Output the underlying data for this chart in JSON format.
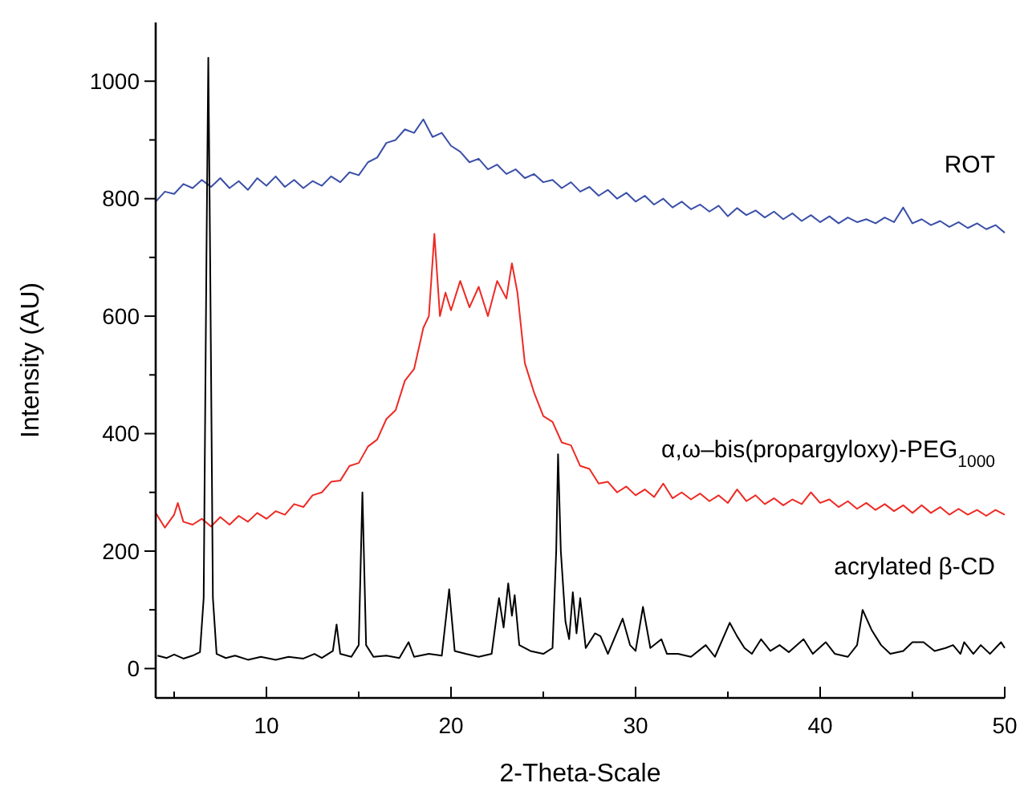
{
  "chart_data": {
    "type": "line",
    "xlabel": "2-Theta-Scale",
    "ylabel": "Intensity (AU)",
    "xlim": [
      4,
      50
    ],
    "ylim": [
      -50,
      1100
    ],
    "xticks": [
      {
        "value": 5,
        "label": null
      },
      10,
      {
        "value": 15,
        "label": null
      },
      20,
      {
        "value": 25,
        "label": null
      },
      30,
      {
        "value": 35,
        "label": null
      },
      40,
      {
        "value": 45,
        "label": null
      },
      50
    ],
    "yticks": [
      0,
      {
        "value": 100,
        "label": null
      },
      200,
      {
        "value": 300,
        "label": null
      },
      400,
      {
        "value": 500,
        "label": null
      },
      600,
      {
        "value": 700,
        "label": null
      },
      800,
      {
        "value": 900,
        "label": null
      },
      1000
    ],
    "series": [
      {
        "name": "ROT",
        "color": "#3a4fa8",
        "x": [
          4,
          4.5,
          5,
          5.5,
          6,
          6.5,
          7,
          7.5,
          8,
          8.5,
          9,
          9.5,
          10,
          10.5,
          11,
          11.5,
          12,
          12.5,
          13,
          13.5,
          14,
          14.5,
          15,
          15.5,
          16,
          16.5,
          17,
          17.5,
          18,
          18.5,
          19,
          19.5,
          20,
          20.5,
          21,
          21.5,
          22,
          22.5,
          23,
          23.5,
          24,
          24.5,
          25,
          25.5,
          26,
          26.5,
          27,
          27.5,
          28,
          28.5,
          29,
          29.5,
          30,
          30.5,
          31,
          31.5,
          32,
          32.5,
          33,
          33.5,
          34,
          34.5,
          35,
          35.5,
          36,
          36.5,
          37,
          37.5,
          38,
          38.5,
          39,
          39.5,
          40,
          40.5,
          41,
          41.5,
          42,
          42.5,
          43,
          43.5,
          44,
          44.5,
          45,
          45.5,
          46,
          46.5,
          47,
          47.5,
          48,
          48.5,
          49,
          49.5,
          50
        ],
        "values": [
          795,
          812,
          808,
          825,
          818,
          832,
          820,
          835,
          818,
          830,
          815,
          835,
          822,
          838,
          820,
          832,
          818,
          830,
          822,
          838,
          828,
          845,
          840,
          862,
          870,
          895,
          900,
          918,
          912,
          935,
          905,
          912,
          890,
          880,
          862,
          868,
          850,
          858,
          842,
          850,
          835,
          842,
          828,
          832,
          818,
          828,
          812,
          820,
          805,
          815,
          800,
          810,
          795,
          805,
          790,
          800,
          785,
          795,
          782,
          790,
          778,
          788,
          770,
          784,
          772,
          780,
          768,
          778,
          765,
          775,
          762,
          772,
          760,
          770,
          758,
          768,
          760,
          765,
          758,
          768,
          760,
          785,
          758,
          765,
          755,
          762,
          752,
          760,
          750,
          758,
          748,
          755,
          742
        ]
      },
      {
        "name": "α,ω–bis(propargyloxy)-PEG$_{1000}$",
        "color": "#ee2a24",
        "x": [
          4,
          4.5,
          5,
          5.2,
          5.5,
          6,
          6.5,
          7,
          7.5,
          8,
          8.5,
          9,
          9.5,
          10,
          10.5,
          11,
          11.5,
          12,
          12.5,
          13,
          13.5,
          14,
          14.5,
          15,
          15.5,
          16,
          16.5,
          17,
          17.5,
          18,
          18.5,
          18.8,
          19.1,
          19.4,
          19.7,
          20,
          20.5,
          21,
          21.5,
          22,
          22.5,
          23,
          23.3,
          23.6,
          24,
          24.5,
          25,
          25.5,
          26,
          26.5,
          27,
          27.5,
          28,
          28.5,
          29,
          29.5,
          30,
          30.5,
          31,
          31.5,
          32,
          32.5,
          33,
          33.5,
          34,
          34.5,
          35,
          35.5,
          36,
          36.5,
          37,
          37.5,
          38,
          38.5,
          39,
          39.5,
          40,
          40.5,
          41,
          41.5,
          42,
          42.5,
          43,
          43.5,
          44,
          44.5,
          45,
          45.5,
          46,
          46.5,
          47,
          47.5,
          48,
          48.5,
          49,
          49.5,
          50
        ],
        "values": [
          265,
          240,
          262,
          282,
          250,
          245,
          255,
          242,
          258,
          245,
          260,
          250,
          265,
          255,
          268,
          262,
          280,
          275,
          295,
          300,
          318,
          320,
          345,
          350,
          378,
          390,
          425,
          440,
          490,
          510,
          580,
          600,
          740,
          600,
          640,
          610,
          660,
          615,
          650,
          600,
          660,
          630,
          690,
          640,
          520,
          470,
          430,
          420,
          385,
          380,
          345,
          340,
          315,
          318,
          300,
          310,
          295,
          305,
          292,
          315,
          290,
          300,
          288,
          298,
          285,
          295,
          282,
          305,
          285,
          295,
          280,
          290,
          278,
          288,
          280,
          300,
          282,
          288,
          275,
          285,
          272,
          282,
          270,
          280,
          268,
          278,
          265,
          278,
          265,
          275,
          262,
          272,
          262,
          270,
          260,
          270,
          262
        ]
      },
      {
        "name": "acrylated β-CD",
        "color": "#000000",
        "x": [
          4.1,
          4.6,
          5,
          5.5,
          6,
          6.4,
          6.6,
          6.75,
          6.85,
          6.95,
          7.1,
          7.3,
          7.8,
          8.3,
          9,
          9.7,
          10.5,
          11.2,
          12,
          12.6,
          13,
          13.6,
          13.8,
          14,
          14.6,
          15,
          15.2,
          15.4,
          15.8,
          16.5,
          17.2,
          17.7,
          18,
          18.8,
          19.5,
          19.9,
          20.2,
          20.8,
          21.5,
          22.2,
          22.6,
          22.85,
          23.1,
          23.3,
          23.45,
          23.7,
          24.3,
          25,
          25.5,
          25.7,
          25.8,
          25.95,
          26.2,
          26.4,
          26.6,
          26.8,
          27,
          27.3,
          27.8,
          28.1,
          28.5,
          29.3,
          29.7,
          30,
          30.4,
          30.8,
          31.4,
          31.7,
          32.3,
          33,
          33.8,
          34.3,
          35.1,
          35.5,
          35.9,
          36.3,
          36.8,
          37.3,
          37.8,
          38.3,
          39.1,
          39.6,
          40.3,
          40.8,
          41.5,
          42,
          42.3,
          42.8,
          43.3,
          43.8,
          44.5,
          45,
          45.6,
          46.2,
          46.8,
          47.2,
          47.6,
          47.8,
          48.3,
          48.7,
          49.2,
          49.8,
          50
        ],
        "values": [
          22,
          18,
          24,
          17,
          22,
          28,
          120,
          700,
          1040,
          700,
          120,
          25,
          18,
          22,
          15,
          20,
          15,
          20,
          17,
          25,
          18,
          30,
          75,
          25,
          20,
          40,
          300,
          40,
          20,
          22,
          18,
          45,
          20,
          25,
          22,
          135,
          30,
          25,
          20,
          25,
          120,
          70,
          145,
          90,
          125,
          40,
          30,
          25,
          35,
          200,
          365,
          200,
          80,
          50,
          130,
          60,
          120,
          35,
          60,
          55,
          25,
          85,
          40,
          30,
          105,
          35,
          50,
          25,
          25,
          20,
          40,
          20,
          78,
          55,
          35,
          25,
          50,
          30,
          40,
          28,
          50,
          25,
          45,
          25,
          20,
          40,
          100,
          65,
          40,
          25,
          30,
          45,
          45,
          30,
          35,
          40,
          25,
          45,
          25,
          40,
          25,
          45,
          35
        ]
      }
    ]
  }
}
